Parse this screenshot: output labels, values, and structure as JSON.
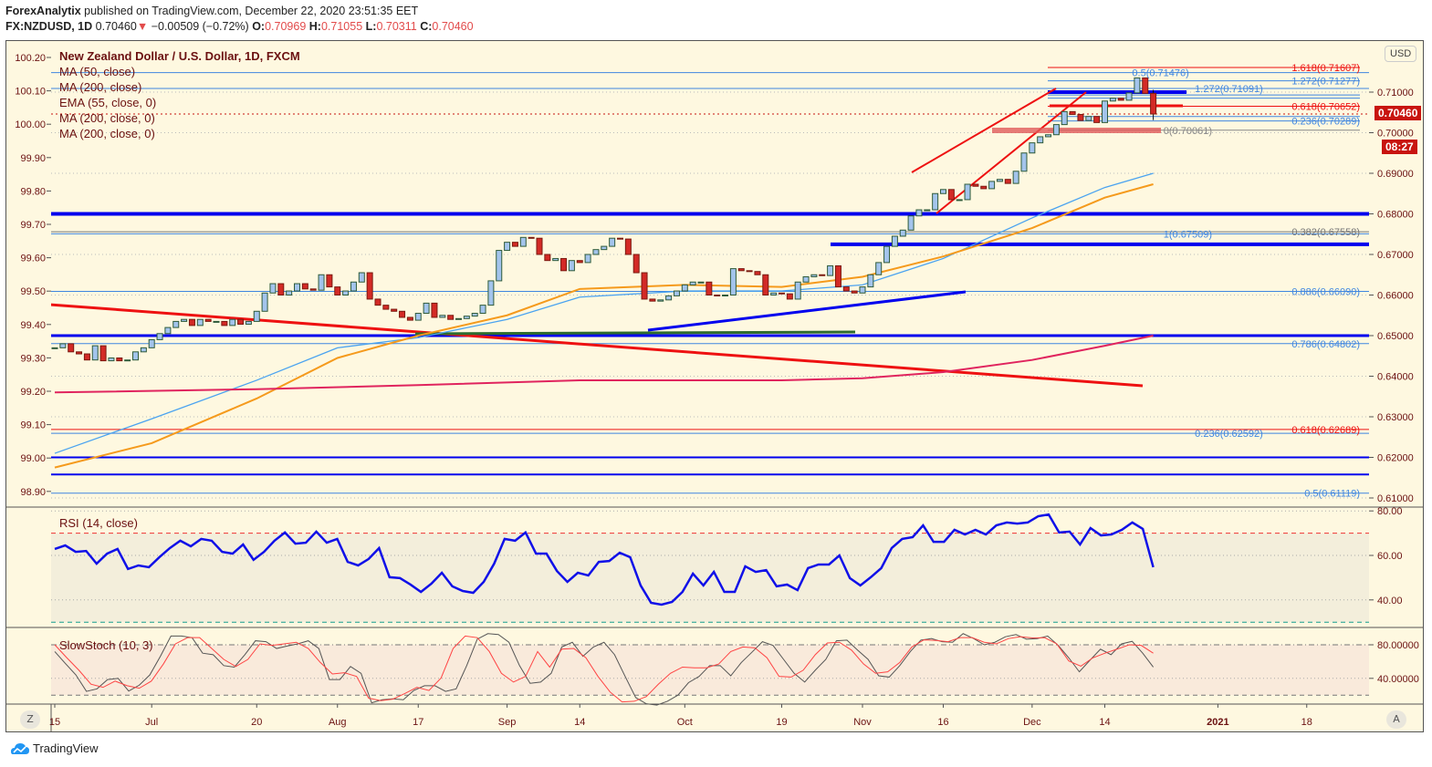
{
  "header": {
    "publisher": "ForexAnalytix",
    "published_text": "published on TradingView.com, December 22, 2020 23:51:35 EET",
    "symbol": "FX:NZDUSD, 1D",
    "last": "0.70460",
    "change": "−0.00509 (−0.72%)",
    "o_label": "O:",
    "o": "0.70969",
    "h_label": "H:",
    "h": "0.71055",
    "l_label": "L:",
    "l": "0.70311",
    "c_label": "C:",
    "c": "0.70460"
  },
  "legend": {
    "title": "New Zealand Dollar / U.S. Dollar, 1D, FXCM",
    "indicators": [
      "MA (50, close)",
      "MA (200, close)",
      "EMA (55, close, 0)",
      "MA (200, close, 0)",
      "MA (200, close, 0)"
    ]
  },
  "price_label": "0.70460",
  "countdown": "08:27",
  "currency_button": "USD",
  "left_button": "Z",
  "right_button": "A",
  "brand": "TradingView",
  "chart_data": {
    "type": "candlestick",
    "first_candle_date": "2020-06-15",
    "last_candle_date": "2020-12-22",
    "closes": [
      0.647,
      0.648,
      0.646,
      0.6455,
      0.644,
      0.6475,
      0.6438,
      0.6445,
      0.6438,
      0.644,
      0.646,
      0.647,
      0.649,
      0.6505,
      0.652,
      0.6535,
      0.654,
      0.6525,
      0.654,
      0.6535,
      0.6535,
      0.6525,
      0.654,
      0.6528,
      0.6535,
      0.656,
      0.6605,
      0.6628,
      0.66,
      0.661,
      0.6628,
      0.6615,
      0.6612,
      0.665,
      0.662,
      0.66,
      0.661,
      0.6632,
      0.6655,
      0.659,
      0.6575,
      0.6565,
      0.656,
      0.6545,
      0.6538,
      0.6555,
      0.658,
      0.6545,
      0.655,
      0.654,
      0.6542,
      0.6548,
      0.6555,
      0.6575,
      0.6635,
      0.671,
      0.673,
      0.672,
      0.6742,
      0.674,
      0.67,
      0.6685,
      0.669,
      0.666,
      0.6685,
      0.668,
      0.67,
      0.6712,
      0.672,
      0.674,
      0.6738,
      0.67,
      0.6655,
      0.659,
      0.6585,
      0.6588,
      0.6598,
      0.661,
      0.6625,
      0.6632,
      0.6632,
      0.66,
      0.6598,
      0.66,
      0.6665,
      0.666,
      0.6658,
      0.665,
      0.66,
      0.6605,
      0.6603,
      0.659,
      0.6632,
      0.6645,
      0.665,
      0.6648,
      0.6672,
      0.662,
      0.661,
      0.6605,
      0.662,
      0.665,
      0.668,
      0.672,
      0.6745,
      0.676,
      0.6795,
      0.681,
      0.681,
      0.685,
      0.686,
      0.6835,
      0.6835,
      0.6873,
      0.6868,
      0.6862,
      0.688,
      0.6885,
      0.6875,
      0.6905,
      0.695,
      0.6975,
      0.699,
      0.6995,
      0.702,
      0.7052,
      0.7045,
      0.703,
      0.704,
      0.7025,
      0.7078,
      0.7085,
      0.708,
      0.7098,
      0.7135,
      0.70969,
      0.7046
    ],
    "last_candle": {
      "open": 0.70969,
      "high": 0.71055,
      "low": 0.70311,
      "close": 0.7046
    },
    "up_color": "#a3c4ec",
    "down_color": "#d32a26",
    "moving_averages": [
      {
        "name": "MA (50, close)",
        "color": "#4aa3f0",
        "points": [
          [
            "2020-06-15",
            0.621
          ],
          [
            "2020-07-01",
            0.6295
          ],
          [
            "2020-07-20",
            0.639
          ],
          [
            "2020-08-03",
            0.647
          ],
          [
            "2020-08-17",
            0.6495
          ],
          [
            "2020-09-01",
            0.654
          ],
          [
            "2020-09-14",
            0.6595
          ],
          [
            "2020-10-01",
            0.661
          ],
          [
            "2020-10-19",
            0.661
          ],
          [
            "2020-11-02",
            0.6625
          ],
          [
            "2020-11-16",
            0.669
          ],
          [
            "2020-12-01",
            0.679
          ],
          [
            "2020-12-14",
            0.6865
          ],
          [
            "2020-12-22",
            0.69
          ]
        ]
      },
      {
        "name": "EMA (55, close, 0)",
        "color": "#f59a1c",
        "points": [
          [
            "2020-06-15",
            0.6175
          ],
          [
            "2020-07-01",
            0.6235
          ],
          [
            "2020-07-20",
            0.6345
          ],
          [
            "2020-08-03",
            0.6445
          ],
          [
            "2020-08-17",
            0.65
          ],
          [
            "2020-09-01",
            0.655
          ],
          [
            "2020-09-14",
            0.6615
          ],
          [
            "2020-10-01",
            0.6625
          ],
          [
            "2020-10-19",
            0.662
          ],
          [
            "2020-11-02",
            0.6645
          ],
          [
            "2020-11-16",
            0.6695
          ],
          [
            "2020-12-01",
            0.6765
          ],
          [
            "2020-12-14",
            0.684
          ],
          [
            "2020-12-22",
            0.6873
          ]
        ]
      },
      {
        "name": "MA (200, close)",
        "color": "#e0245e",
        "points": [
          [
            "2020-06-15",
            0.636
          ],
          [
            "2020-07-20",
            0.6368
          ],
          [
            "2020-08-17",
            0.6378
          ],
          [
            "2020-09-14",
            0.639
          ],
          [
            "2020-10-19",
            0.639
          ],
          [
            "2020-11-02",
            0.6395
          ],
          [
            "2020-11-16",
            0.641
          ],
          [
            "2020-12-01",
            0.644
          ],
          [
            "2020-12-14",
            0.6475
          ],
          [
            "2020-12-22",
            0.65
          ]
        ]
      }
    ],
    "levels": [
      {
        "price": 0.7148,
        "color": "#3f86e0",
        "width": 1,
        "label": "0.5(0.71476)"
      },
      {
        "price": 0.7109,
        "color": "#3f86e0",
        "width": 1,
        "label": "1.272(0.71091)"
      },
      {
        "price": 0.7046,
        "color": "#c8140f",
        "width": 1,
        "dash": "2,3",
        "label": ""
      },
      {
        "price": 0.68,
        "color": "#0000ee",
        "width": 4,
        "label": ""
      },
      {
        "price": 0.67558,
        "color": "#777777",
        "width": 1,
        "label": "0.382(0.67558)"
      },
      {
        "price": 0.67509,
        "color": "#3f86e0",
        "width": 1,
        "label": "1(0.67509)"
      },
      {
        "price": 0.6609,
        "color": "#3f86e0",
        "width": 1,
        "label": "0.886(0.66090)"
      },
      {
        "price": 0.65,
        "color": "#0000ee",
        "width": 3,
        "label": ""
      },
      {
        "price": 0.64802,
        "color": "#3f86e0",
        "width": 1,
        "label": "0.786(0.64802)"
      },
      {
        "price": 0.62689,
        "color": "#ee1111",
        "width": 1,
        "label": "0.618(0.62689)"
      },
      {
        "price": 0.62592,
        "color": "#3f86e0",
        "width": 1,
        "label": "0.236(0.62592)"
      },
      {
        "price": 0.62,
        "color": "#0000ee",
        "width": 2,
        "label": ""
      },
      {
        "price": 0.6158,
        "color": "#0000ee",
        "width": 2,
        "label": ""
      },
      {
        "price": 0.61119,
        "color": "#3f86e0",
        "width": 1,
        "label": "0.5(0.61119)"
      }
    ],
    "short_levels": [
      {
        "price": 0.71607,
        "color": "#ee1111",
        "label": "1.618(0.71607)"
      },
      {
        "price": 0.71277,
        "color": "#3f86e0",
        "label": "1.272(0.71277)"
      },
      {
        "price": 0.71,
        "color": "#0000ee",
        "label": "",
        "width": 4
      },
      {
        "price": 0.70652,
        "color": "#ee1111",
        "label": "0.618(0.70652)"
      },
      {
        "price": 0.70289,
        "color": "#3f86e0",
        "label": "0.236(0.70289)"
      },
      {
        "price": 0.70061,
        "color": "#888888",
        "label": "0(0.70061)"
      }
    ],
    "right_axis_ticks": [
      "0.71000",
      "0.70000",
      "0.69000",
      "0.68000",
      "0.67000",
      "0.66000",
      "0.65000",
      "0.64000",
      "0.63000",
      "0.62000",
      "0.61000"
    ],
    "left_axis_ticks": [
      "100.20",
      "100.10",
      "100.00",
      "99.90",
      "99.80",
      "99.70",
      "99.60",
      "99.50",
      "99.40",
      "99.30",
      "99.20",
      "99.10",
      "99.00",
      "98.90"
    ],
    "x_ticks": [
      {
        "date": "2020-06-15",
        "label": "15"
      },
      {
        "date": "2020-07-01",
        "label": "Jul"
      },
      {
        "date": "2020-07-20",
        "label": "20"
      },
      {
        "date": "2020-08-03",
        "label": "Aug"
      },
      {
        "date": "2020-08-17",
        "label": "17"
      },
      {
        "date": "2020-09-01",
        "label": "Sep"
      },
      {
        "date": "2020-09-14",
        "label": "14"
      },
      {
        "date": "2020-10-01",
        "label": "Oct"
      },
      {
        "date": "2020-10-19",
        "label": "19"
      },
      {
        "date": "2020-11-02",
        "label": "Nov"
      },
      {
        "date": "2020-11-16",
        "label": "16"
      },
      {
        "date": "2020-12-01",
        "label": "Dec"
      },
      {
        "date": "2020-12-14",
        "label": "14"
      },
      {
        "date": "2021-01-01",
        "label": "2021",
        "bold": true
      },
      {
        "date": "2021-01-18",
        "label": "18"
      }
    ],
    "rsi": {
      "title": "RSI (14, close)",
      "color": "#1010e8",
      "upper": 70,
      "lower": 30,
      "ticks": [
        "80.00",
        "60.00",
        "40.00"
      ],
      "values": [
        62.9,
        64.5,
        61.6,
        62.0,
        56.3,
        60.8,
        62.9,
        53.9,
        55.5,
        54.7,
        59.2,
        63.3,
        66.6,
        64.1,
        67.4,
        66.6,
        61.6,
        60.8,
        64.9,
        58.0,
        61.6,
        66.6,
        70.3,
        65.3,
        65.7,
        70.7,
        65.7,
        67.4,
        57.1,
        55.5,
        58.4,
        63.3,
        50.2,
        49.8,
        46.9,
        43.6,
        47.3,
        52.2,
        46.1,
        44.0,
        43.2,
        48.1,
        56.3,
        67.4,
        66.6,
        70.3,
        60.8,
        60.8,
        53.0,
        48.1,
        52.2,
        51.0,
        57.1,
        57.5,
        61.2,
        59.2,
        46.5,
        38.7,
        37.9,
        39.1,
        43.6,
        51.8,
        46.5,
        52.6,
        43.6,
        43.6,
        55.1,
        52.6,
        53.4,
        46.1,
        46.9,
        44.4,
        54.3,
        55.9,
        55.9,
        60.0,
        49.8,
        46.5,
        50.2,
        54.3,
        63.3,
        67.4,
        68.2,
        73.5,
        66.1,
        66.1,
        71.5,
        69.4,
        71.5,
        69.4,
        73.5,
        74.8,
        74.3,
        74.8,
        77.6,
        78.4,
        70.3,
        70.7,
        64.9,
        72.3,
        69.0,
        69.4,
        71.5,
        74.8,
        71.9,
        54.7
      ]
    },
    "stoch": {
      "title": "SlowStoch (10, 3)",
      "upper": 80,
      "lower": 20,
      "ticks": [
        "80.00000",
        "40.00000"
      ],
      "k_color": "#555555",
      "d_color": "#ff4444",
      "k": [
        71.9,
        57.8,
        44.1,
        24.5,
        27.5,
        38.6,
        40,
        24.9,
        31.9,
        44.1,
        66.3,
        90.4,
        90.4,
        88.5,
        70,
        68.2,
        55.2,
        53.4,
        68.2,
        84.8,
        83.7,
        75.6,
        78.5,
        81.1,
        84.8,
        75.6,
        38.6,
        38.6,
        54.1,
        46,
        10.8,
        14.5,
        15.6,
        14.5,
        25.6,
        31.2,
        31.2,
        24.5,
        27.5,
        55.2,
        86.7,
        93.3,
        92.2,
        83,
        55.2,
        34.1,
        35.6,
        46,
        77.4,
        83,
        66.3,
        77.4,
        83,
        68.2,
        42.3,
        17.1,
        9.7,
        8.2,
        12.7,
        20,
        34.9,
        42.3,
        55.2,
        55.2,
        43,
        58.9,
        71.1,
        83.7,
        79.3,
        62.6,
        46,
        35.6,
        49.7,
        62.6,
        84.8,
        85.6,
        73.7,
        62.6,
        43,
        41.5,
        55.2,
        71.9,
        85.6,
        87.4,
        83.7,
        83,
        93.3,
        87.4,
        80,
        83,
        89.6,
        92.2,
        86.7,
        87.4,
        90.4,
        79.3,
        64.5,
        47.8,
        61.5,
        74.8,
        68.2,
        81.1,
        84.1,
        70,
        53.4
      ],
      "d": [
        80,
        64.5,
        49.7,
        33,
        29.3,
        36.7,
        31.2,
        28.2,
        36.7,
        57.1,
        81.1,
        88.5,
        88.5,
        75.6,
        62.6,
        54.1,
        62.6,
        81.1,
        79.3,
        81.1,
        83,
        75.6,
        58.9,
        45.2,
        46.7,
        42.3,
        16.4,
        13.4,
        15.2,
        21.9,
        29.3,
        25.6,
        40.4,
        75.6,
        90.4,
        88.5,
        71.9,
        46,
        35.6,
        42.3,
        71.9,
        53.4,
        74.8,
        75.6,
        64.5,
        42.3,
        23.8,
        11.9,
        12.7,
        18.2,
        33,
        46,
        53.4,
        52.6,
        52.6,
        57.1,
        71.9,
        77.4,
        76.3,
        64.5,
        42.3,
        41.5,
        49.7,
        68.2,
        82.2,
        83,
        73.7,
        57.1,
        46,
        47.8,
        58.9,
        77.4,
        85.9,
        85.2,
        83.7,
        88.5,
        88.5,
        83,
        81.1,
        87.4,
        89.6,
        88.1,
        88.5,
        81.1,
        60.8,
        54.5,
        64.5,
        70,
        74.8,
        80,
        79.3,
        70
      ]
    }
  }
}
